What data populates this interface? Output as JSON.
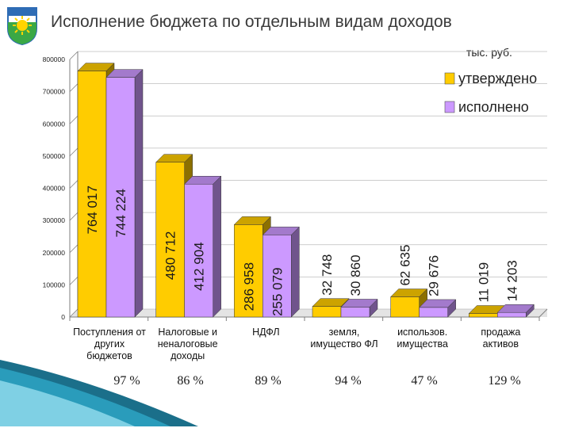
{
  "header": {
    "title": "Исполнение бюджета по отдельным видам доходов",
    "unit": "тыс. руб."
  },
  "colors": {
    "approved": "#FFCC00",
    "executed": "#CC99FF",
    "axis": "#7f7f7f",
    "text": "#1a1a1a",
    "accent_teal": "#2a8fa8",
    "emblem_green": "#3aa845",
    "emblem_blue": "#2e6cb5"
  },
  "chart_data": {
    "type": "bar",
    "title": "Исполнение бюджета по отдельным видам доходов",
    "ylim": [
      0,
      800000
    ],
    "yticks": [
      "0",
      "100000",
      "200000",
      "300000",
      "400000",
      "500000",
      "600000",
      "700000",
      "800000"
    ],
    "grid": true,
    "legend_position": "top-right",
    "categories": [
      "Поступления от других бюджетов",
      "Налоговые и неналоговые доходы",
      "НДФЛ",
      "земля, имущество ФЛ",
      "использов. имущества",
      "продажа активов"
    ],
    "category_lines": [
      [
        "Поступления от",
        "других",
        "бюджетов"
      ],
      [
        "Налоговые и",
        "неналоговые",
        "доходы"
      ],
      [
        "НДФЛ"
      ],
      [
        "земля,",
        "имущество ФЛ"
      ],
      [
        "использов.",
        "имущества"
      ],
      [
        "продажа",
        "активов"
      ]
    ],
    "series": [
      {
        "name": "утверждено",
        "values": [
          764017,
          480712,
          286958,
          32748,
          62635,
          11019
        ],
        "labels": [
          "764 017",
          "480 712",
          "286 958",
          "32 748",
          "62 635",
          "11 019"
        ]
      },
      {
        "name": "исполнено",
        "values": [
          744224,
          412904,
          255079,
          30860,
          29676,
          14203
        ],
        "labels": [
          "744 224",
          "412 904",
          "255 079",
          "30 860",
          "29 676",
          "14 203"
        ]
      }
    ],
    "percentages": [
      "97 %",
      "86 %",
      "89 %",
      "94 %",
      "47 %",
      "129 %"
    ]
  }
}
